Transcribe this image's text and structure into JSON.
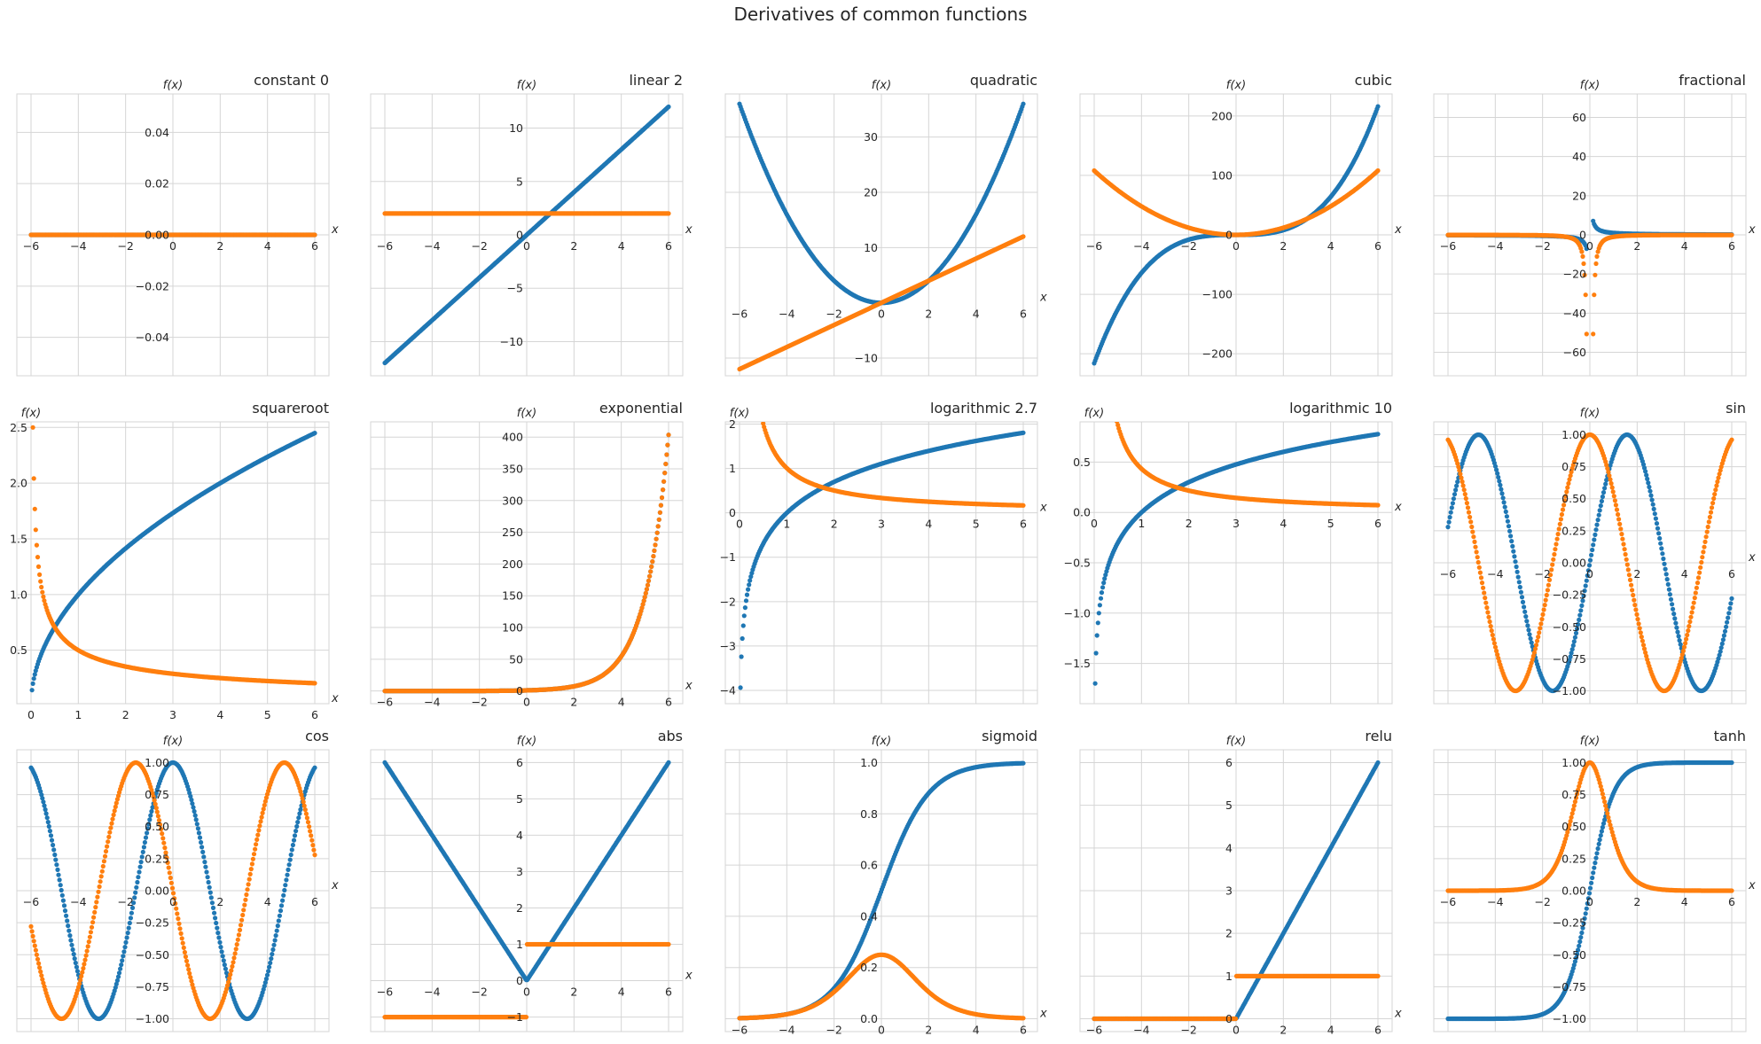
{
  "title": "Derivatives of common functions",
  "colors": {
    "function": "#1f77b4",
    "derivative": "#ff7f0e",
    "grid": "#d5d5d5",
    "text": "#262626"
  },
  "chart_data": [
    {
      "type": "scatter",
      "title": "constant 0",
      "xlabel": "x",
      "ylabel": "f(x)",
      "func": "constant 0",
      "xlim": [
        -6.6,
        6.6
      ],
      "ylim": [
        -0.055,
        0.055
      ],
      "xticks": [
        -6,
        -4,
        -2,
        0,
        2,
        4,
        6
      ],
      "yticks": [
        -0.04,
        -0.02,
        0,
        0.02,
        0.04
      ],
      "ytick_labels": [
        "−0.04",
        "−0.02",
        "0.00",
        "0.02",
        "0.04"
      ],
      "grid": true,
      "series": [
        {
          "role": "function",
          "f": "y = 0"
        },
        {
          "role": "derivative",
          "f": "y' = 0"
        }
      ]
    },
    {
      "type": "scatter",
      "title": "linear 2",
      "xlabel": "x",
      "ylabel": "f(x)",
      "func": "linear 2",
      "xlim": [
        -6.6,
        6.6
      ],
      "ylim": [
        -13.2,
        13.2
      ],
      "xticks": [
        -6,
        -4,
        -2,
        0,
        2,
        4,
        6
      ],
      "yticks": [
        -10,
        -5,
        0,
        5,
        10
      ],
      "ytick_labels": [
        "−10",
        "−5",
        "0",
        "5",
        "10"
      ],
      "grid": true,
      "series": [
        {
          "role": "function",
          "f": "y = 2x"
        },
        {
          "role": "derivative",
          "f": "y' = 2"
        }
      ]
    },
    {
      "type": "scatter",
      "title": "quadratic",
      "xlabel": "x",
      "ylabel": "f(x)",
      "func": "quadratic",
      "xlim": [
        -6.6,
        6.6
      ],
      "ylim": [
        -13.2,
        37.8
      ],
      "xticks": [
        -6,
        -4,
        -2,
        0,
        2,
        4,
        6
      ],
      "yticks": [
        -10,
        10,
        20,
        30
      ],
      "ytick_labels": [
        "−10",
        "10",
        "20",
        "30"
      ],
      "grid": true,
      "series": [
        {
          "role": "function",
          "f": "y = x^2"
        },
        {
          "role": "derivative",
          "f": "y' = 2x"
        }
      ]
    },
    {
      "type": "scatter",
      "title": "cubic",
      "xlabel": "x",
      "ylabel": "f(x)",
      "func": "cubic",
      "xlim": [
        -6.6,
        6.6
      ],
      "ylim": [
        -237,
        237
      ],
      "xticks": [
        -6,
        -4,
        -2,
        0,
        2,
        4,
        6
      ],
      "yticks": [
        -200,
        -100,
        0,
        100,
        200
      ],
      "ytick_labels": [
        "−200",
        "−100",
        "0",
        "100",
        "200"
      ],
      "grid": true,
      "series": [
        {
          "role": "function",
          "f": "y = x^3"
        },
        {
          "role": "derivative",
          "f": "y' = 3x^2"
        }
      ]
    },
    {
      "type": "scatter",
      "title": "fractional",
      "xlabel": "x",
      "ylabel": "f(x)",
      "func": "fractional",
      "xlim": [
        -6.6,
        6.6
      ],
      "ylim": [
        -72,
        72
      ],
      "xticks": [
        -6,
        -4,
        -2,
        0,
        2,
        4,
        6
      ],
      "yticks": [
        -60,
        -40,
        -20,
        0,
        20,
        40,
        60
      ],
      "ytick_labels": [
        "−60",
        "−40",
        "−20",
        "0",
        "20",
        "40",
        "60"
      ],
      "grid": true,
      "series": [
        {
          "role": "function",
          "f": "y = 1/x"
        },
        {
          "role": "derivative",
          "f": "y' = -1/x^2"
        }
      ]
    },
    {
      "type": "scatter",
      "title": "squareroot",
      "xlabel": "x",
      "ylabel": "f(x)",
      "func": "squareroot",
      "xlim": [
        -0.3,
        6.3
      ],
      "ylim": [
        0.02,
        2.55
      ],
      "xticks": [
        0,
        1,
        2,
        3,
        4,
        5,
        6
      ],
      "yticks": [
        0.5,
        1.0,
        1.5,
        2.0,
        2.5
      ],
      "ytick_labels": [
        "0.5",
        "1.0",
        "1.5",
        "2.0",
        "2.5"
      ],
      "grid": true,
      "series": [
        {
          "role": "function",
          "f": "y = sqrt(x)"
        },
        {
          "role": "derivative",
          "f": "y' = 1/(2 sqrt(x))"
        }
      ]
    },
    {
      "type": "scatter",
      "title": "exponential",
      "xlabel": "x",
      "ylabel": "f(x)",
      "func": "exponential",
      "xlim": [
        -6.6,
        6.6
      ],
      "ylim": [
        -20,
        424
      ],
      "xticks": [
        -6,
        -4,
        -2,
        0,
        2,
        4,
        6
      ],
      "yticks": [
        0,
        50,
        100,
        150,
        200,
        250,
        300,
        350,
        400
      ],
      "ytick_labels": [
        "0",
        "50",
        "100",
        "150",
        "200",
        "250",
        "300",
        "350",
        "400"
      ],
      "grid": true,
      "series": [
        {
          "role": "function",
          "f": "y = e^x"
        },
        {
          "role": "derivative",
          "f": "y' = e^x"
        }
      ]
    },
    {
      "type": "scatter",
      "title": "logarithmic 2.7",
      "xlabel": "x",
      "ylabel": "f(x)",
      "func": "logarithmic 2.7",
      "xlim": [
        -0.3,
        6.3
      ],
      "ylim": [
        -4.3,
        2.05
      ],
      "xticks": [
        0,
        1,
        2,
        3,
        4,
        5,
        6
      ],
      "yticks": [
        -4,
        -3,
        -2,
        -1,
        0,
        1,
        2
      ],
      "ytick_labels": [
        "−4",
        "−3",
        "−2",
        "−1",
        "0",
        "1",
        "2"
      ],
      "grid": true,
      "series": [
        {
          "role": "function",
          "f": "y = log_2.7(x)"
        },
        {
          "role": "derivative",
          "f": "y' = 1/(x ln 2.7)"
        }
      ]
    },
    {
      "type": "scatter",
      "title": "logarithmic 10",
      "xlabel": "x",
      "ylabel": "f(x)",
      "func": "logarithmic 10",
      "xlim": [
        -0.3,
        6.3
      ],
      "ylim": [
        -1.9,
        0.9
      ],
      "xticks": [
        0,
        1,
        2,
        3,
        4,
        5,
        6
      ],
      "yticks": [
        -1.5,
        -1.0,
        -0.5,
        0,
        0.5
      ],
      "ytick_labels": [
        "−1.5",
        "−1.0",
        "−0.5",
        "0.0",
        "0.5"
      ],
      "grid": true,
      "series": [
        {
          "role": "function",
          "f": "y = log_10(x)"
        },
        {
          "role": "derivative",
          "f": "y' = 1/(x ln 10)"
        }
      ]
    },
    {
      "type": "scatter",
      "title": "sin",
      "xlabel": "x",
      "ylabel": "f(x)",
      "func": "sin",
      "xlim": [
        -6.6,
        6.6
      ],
      "ylim": [
        -1.1,
        1.1
      ],
      "xticks": [
        -6,
        -4,
        -2,
        0,
        2,
        4,
        6
      ],
      "yticks": [
        -1,
        -0.75,
        -0.5,
        -0.25,
        0,
        0.25,
        0.5,
        0.75,
        1
      ],
      "ytick_labels": [
        "−1.00",
        "−0.75",
        "−0.50",
        "−0.25",
        "0.00",
        "0.25",
        "0.50",
        "0.75",
        "1.00"
      ],
      "grid": true,
      "series": [
        {
          "role": "function",
          "f": "y = sin(x)"
        },
        {
          "role": "derivative",
          "f": "y' = cos(x)"
        }
      ]
    },
    {
      "type": "scatter",
      "title": "cos",
      "xlabel": "x",
      "ylabel": "f(x)",
      "func": "cos",
      "xlim": [
        -6.6,
        6.6
      ],
      "ylim": [
        -1.1,
        1.1
      ],
      "xticks": [
        -6,
        -4,
        -2,
        0,
        2,
        4,
        6
      ],
      "yticks": [
        -1,
        -0.75,
        -0.5,
        -0.25,
        0,
        0.25,
        0.5,
        0.75,
        1
      ],
      "ytick_labels": [
        "−1.00",
        "−0.75",
        "−0.50",
        "−0.25",
        "0.00",
        "0.25",
        "0.50",
        "0.75",
        "1.00"
      ],
      "grid": true,
      "series": [
        {
          "role": "function",
          "f": "y = cos(x)"
        },
        {
          "role": "derivative",
          "f": "y' = -sin(x)"
        }
      ]
    },
    {
      "type": "scatter",
      "title": "abs",
      "xlabel": "x",
      "ylabel": "f(x)",
      "func": "abs",
      "xlim": [
        -6.6,
        6.6
      ],
      "ylim": [
        -1.4,
        6.35
      ],
      "xticks": [
        -6,
        -4,
        -2,
        0,
        2,
        4,
        6
      ],
      "yticks": [
        -1,
        0,
        1,
        2,
        3,
        4,
        5,
        6
      ],
      "ytick_labels": [
        "−1",
        "0",
        "1",
        "2",
        "3",
        "4",
        "5",
        "6"
      ],
      "grid": true,
      "series": [
        {
          "role": "function",
          "f": "y = |x|"
        },
        {
          "role": "derivative",
          "f": "y' = sign(x)"
        }
      ]
    },
    {
      "type": "scatter",
      "title": "sigmoid",
      "xlabel": "x",
      "ylabel": "f(x)",
      "func": "sigmoid",
      "xlim": [
        -6.6,
        6.6
      ],
      "ylim": [
        -0.05,
        1.05
      ],
      "xticks": [
        -6,
        -4,
        -2,
        0,
        2,
        4,
        6
      ],
      "yticks": [
        0,
        0.2,
        0.4,
        0.6,
        0.8,
        1.0
      ],
      "ytick_labels": [
        "0.0",
        "0.2",
        "0.4",
        "0.6",
        "0.8",
        "1.0"
      ],
      "grid": true,
      "series": [
        {
          "role": "function",
          "f": "y = 1/(1+e^-x)"
        },
        {
          "role": "derivative",
          "f": "y' = s(x)(1-s(x))"
        }
      ]
    },
    {
      "type": "scatter",
      "title": "relu",
      "xlabel": "x",
      "ylabel": "f(x)",
      "func": "relu",
      "xlim": [
        -6.6,
        6.6
      ],
      "ylim": [
        -0.3,
        6.3
      ],
      "xticks": [
        -6,
        -4,
        -2,
        0,
        2,
        4,
        6
      ],
      "yticks": [
        0,
        1,
        2,
        3,
        4,
        5,
        6
      ],
      "ytick_labels": [
        "0",
        "1",
        "2",
        "3",
        "4",
        "5",
        "6"
      ],
      "grid": true,
      "series": [
        {
          "role": "function",
          "f": "y = max(0,x)"
        },
        {
          "role": "derivative",
          "f": "y' = step(x)"
        }
      ]
    },
    {
      "type": "scatter",
      "title": "tanh",
      "xlabel": "x",
      "ylabel": "f(x)",
      "func": "tanh",
      "xlim": [
        -6.6,
        6.6
      ],
      "ylim": [
        -1.1,
        1.1
      ],
      "xticks": [
        -6,
        -4,
        -2,
        0,
        2,
        4,
        6
      ],
      "yticks": [
        -1,
        -0.75,
        -0.5,
        -0.25,
        0,
        0.25,
        0.5,
        0.75,
        1
      ],
      "ytick_labels": [
        "−1.00",
        "−0.75",
        "−0.50",
        "−0.25",
        "0.00",
        "0.25",
        "0.50",
        "0.75",
        "1.00"
      ],
      "grid": true,
      "series": [
        {
          "role": "function",
          "f": "y = tanh(x)"
        },
        {
          "role": "derivative",
          "f": "y' = 1 - tanh^2(x)"
        }
      ]
    }
  ]
}
